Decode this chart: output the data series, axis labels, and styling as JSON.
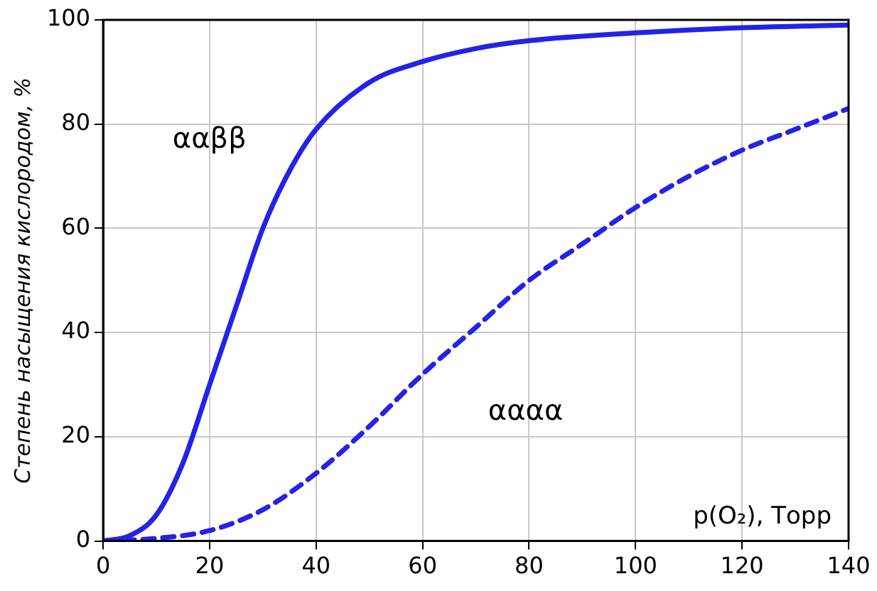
{
  "chart_data": {
    "type": "line",
    "xlabel": "p(O₂), Торр",
    "ylabel": "Степень насыщения кислородом, %",
    "xlim": [
      0,
      140
    ],
    "xticks": [
      0,
      20,
      40,
      60,
      80,
      100,
      120,
      140
    ],
    "ylim": [
      0,
      100
    ],
    "yticks": [
      0,
      20,
      40,
      60,
      80,
      100
    ],
    "grid": true,
    "legend": false,
    "marker": "none",
    "series": [
      {
        "name": "ααββ",
        "color": "#2323e8",
        "line_style": "solid",
        "x": [
          0,
          5,
          10,
          15,
          20,
          25,
          30,
          35,
          40,
          50,
          60,
          70,
          80,
          100,
          120,
          140
        ],
        "values": [
          0,
          1,
          5,
          15,
          30,
          45,
          60,
          71,
          79,
          88,
          92,
          94.5,
          96,
          97.5,
          98.5,
          99
        ]
      },
      {
        "name": "αααα",
        "color": "#2323e8",
        "line_style": "dashed",
        "x": [
          0,
          10,
          20,
          30,
          40,
          50,
          60,
          70,
          80,
          90,
          100,
          110,
          120,
          130,
          140
        ],
        "values": [
          0,
          0.5,
          2,
          6,
          13,
          22,
          32,
          41,
          50,
          57,
          64,
          70,
          75,
          79,
          83
        ]
      }
    ]
  }
}
